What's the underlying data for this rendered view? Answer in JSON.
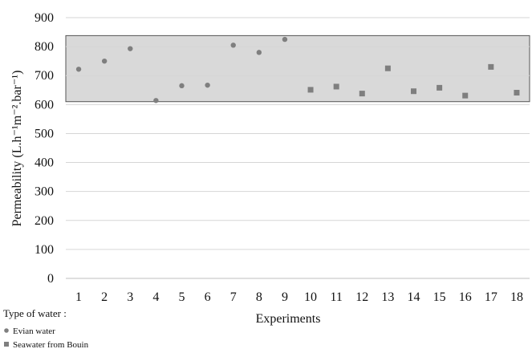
{
  "chart_data": {
    "type": "scatter",
    "xlabel": "Experiments",
    "ylabel": "Permeability (L.h⁻¹m⁻².bar⁻¹)",
    "ylim": [
      0,
      900
    ],
    "yticks": [
      "0",
      "100",
      "200",
      "300",
      "400",
      "500",
      "600",
      "700",
      "800",
      "900"
    ],
    "x_categories": [
      "1",
      "2",
      "3",
      "4",
      "5",
      "6",
      "7",
      "8",
      "9",
      "10",
      "11",
      "12",
      "13",
      "14",
      "15",
      "16",
      "17",
      "18"
    ],
    "grid": true,
    "shaded_band": {
      "from": 610,
      "to": 838,
      "color": "#d9d9d9"
    },
    "series": [
      {
        "name": "Evian water",
        "marker": "circle",
        "color": "#7f7f7f",
        "points": [
          {
            "x": 1,
            "y": 722
          },
          {
            "x": 2,
            "y": 750
          },
          {
            "x": 3,
            "y": 793
          },
          {
            "x": 4,
            "y": 614
          },
          {
            "x": 5,
            "y": 665
          },
          {
            "x": 6,
            "y": 667
          },
          {
            "x": 7,
            "y": 805
          },
          {
            "x": 8,
            "y": 780
          },
          {
            "x": 9,
            "y": 825
          }
        ]
      },
      {
        "name": "Seawater from Bouin",
        "marker": "square",
        "color": "#7f7f7f",
        "points": [
          {
            "x": 10,
            "y": 651
          },
          {
            "x": 11,
            "y": 662
          },
          {
            "x": 12,
            "y": 638
          },
          {
            "x": 13,
            "y": 725
          },
          {
            "x": 14,
            "y": 646
          },
          {
            "x": 15,
            "y": 658
          },
          {
            "x": 16,
            "y": 631
          },
          {
            "x": 17,
            "y": 730
          },
          {
            "x": 18,
            "y": 641
          }
        ]
      }
    ],
    "legend": {
      "title": "Type of water :",
      "placement": "bottom-left"
    }
  }
}
